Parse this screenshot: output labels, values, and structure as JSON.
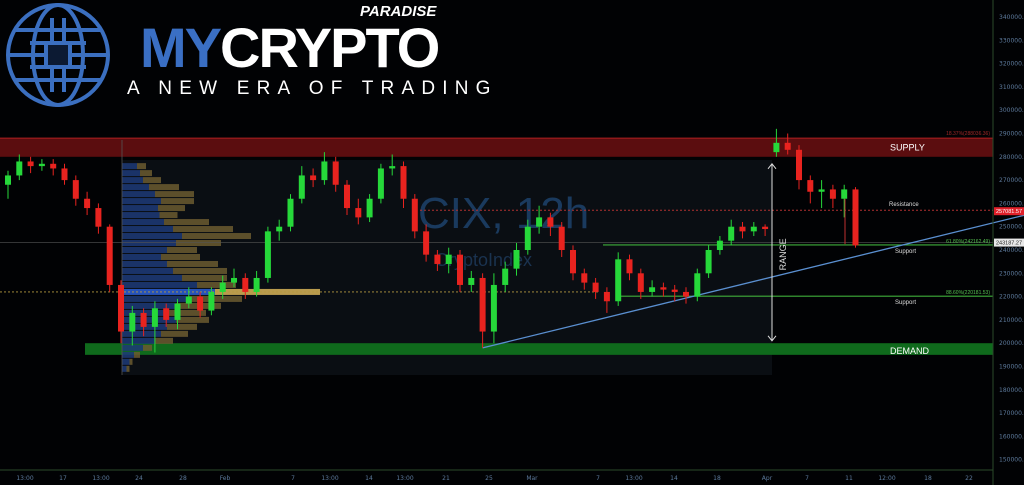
{
  "logo": {
    "brand_part1": "MY",
    "brand_part2": "CRYPTO",
    "brand_top": "PARADISE",
    "tagline": "A NEW ERA OF TRADING"
  },
  "watermark": {
    "symbol": "CIX, 12h",
    "source": "CryptoIndex"
  },
  "annotations": {
    "supply": "SUPPLY",
    "demand": "DEMAND",
    "resistance": "Resistance",
    "support1": "Support",
    "support2": "Support",
    "range": "RANGE",
    "fib_top": "18.37%(288036.36)",
    "fib_618": "61.80%(242162.49)",
    "fib_886": "88.60%(220181.53)"
  },
  "price_tags": {
    "last": "257081.57",
    "crosshair": "243187.27"
  },
  "chart_data": {
    "type": "candlestick",
    "title": "CIX, 12h",
    "yaxis_ticks": [
      "340000.00",
      "330000.00",
      "320000.00",
      "310000.00",
      "300000.00",
      "290000.00",
      "280000.00",
      "270000.00",
      "260000.00",
      "250000.00",
      "240000.00",
      "230000.00",
      "220000.00",
      "210000.00",
      "200000.00",
      "190000.00",
      "180000.00",
      "170000.00",
      "160000.00",
      "150000.00"
    ],
    "ylim": [
      150000,
      340000
    ],
    "xaxis_ticks": [
      "13:00",
      "17",
      "13:00",
      "24",
      "28",
      "Feb",
      "7",
      "13:00",
      "14",
      "13:00",
      "21",
      "25",
      "Mar",
      "7",
      "13:00",
      "14",
      "18",
      "Apr",
      "7",
      "11",
      "12:00",
      "18",
      "22"
    ],
    "colors": {
      "up": "#26d83a",
      "down": "#e8231f",
      "supply": "#6b0f12",
      "demand": "#0f6a1c",
      "trendline": "#5a8fd0",
      "support": "#3fae3a",
      "resistance": "#b03030"
    },
    "candles": [
      [
        268000,
        274000,
        262000,
        272000
      ],
      [
        272000,
        281000,
        270000,
        278000
      ],
      [
        278000,
        280000,
        273000,
        276000
      ],
      [
        276000,
        279000,
        274000,
        277000
      ],
      [
        277000,
        279000,
        272000,
        275000
      ],
      [
        275000,
        277000,
        268000,
        270000
      ],
      [
        270000,
        272000,
        259000,
        262000
      ],
      [
        262000,
        265000,
        255000,
        258000
      ],
      [
        258000,
        260000,
        247000,
        250000
      ],
      [
        250000,
        251000,
        222000,
        225000
      ],
      [
        225000,
        227000,
        200000,
        205000
      ],
      [
        205000,
        216000,
        199000,
        213000
      ],
      [
        213000,
        215000,
        203000,
        207000
      ],
      [
        207000,
        218000,
        196000,
        215000
      ],
      [
        215000,
        217000,
        207000,
        210000
      ],
      [
        210000,
        219000,
        206000,
        217000
      ],
      [
        217000,
        224000,
        215000,
        220000
      ],
      [
        220000,
        222000,
        211000,
        214000
      ],
      [
        214000,
        224000,
        212000,
        222000
      ],
      [
        222000,
        229000,
        219000,
        226000
      ],
      [
        226000,
        232000,
        224000,
        228000
      ],
      [
        228000,
        230000,
        219000,
        222000
      ],
      [
        222000,
        231000,
        220000,
        228000
      ],
      [
        228000,
        250000,
        226000,
        248000
      ],
      [
        248000,
        253000,
        244000,
        250000
      ],
      [
        250000,
        264000,
        248000,
        262000
      ],
      [
        262000,
        276000,
        260000,
        272000
      ],
      [
        272000,
        275000,
        267000,
        270000
      ],
      [
        270000,
        282000,
        268000,
        278000
      ],
      [
        278000,
        280000,
        265000,
        268000
      ],
      [
        268000,
        270000,
        255000,
        258000
      ],
      [
        258000,
        262000,
        251000,
        254000
      ],
      [
        254000,
        264000,
        252000,
        262000
      ],
      [
        262000,
        277000,
        260000,
        275000
      ],
      [
        275000,
        281000,
        272000,
        276000
      ],
      [
        276000,
        278000,
        258000,
        262000
      ],
      [
        262000,
        264000,
        245000,
        248000
      ],
      [
        248000,
        251000,
        235000,
        238000
      ],
      [
        238000,
        240000,
        231000,
        234000
      ],
      [
        234000,
        241000,
        230000,
        238000
      ],
      [
        238000,
        240000,
        222000,
        225000
      ],
      [
        225000,
        231000,
        222000,
        228000
      ],
      [
        228000,
        230000,
        198000,
        205000
      ],
      [
        205000,
        230000,
        200000,
        225000
      ],
      [
        225000,
        235000,
        222000,
        232000
      ],
      [
        232000,
        243000,
        229000,
        240000
      ],
      [
        240000,
        253000,
        238000,
        250000
      ],
      [
        250000,
        259000,
        247000,
        254000
      ],
      [
        254000,
        256000,
        246000,
        250000
      ],
      [
        250000,
        252000,
        237000,
        240000
      ],
      [
        240000,
        242000,
        227000,
        230000
      ],
      [
        230000,
        232000,
        223000,
        226000
      ],
      [
        226000,
        228000,
        219000,
        222000
      ],
      [
        222000,
        224000,
        213000,
        218000
      ],
      [
        218000,
        239000,
        216000,
        236000
      ],
      [
        236000,
        238000,
        227000,
        230000
      ],
      [
        230000,
        232000,
        219000,
        222000
      ],
      [
        222000,
        227000,
        220000,
        224000
      ],
      [
        224000,
        226000,
        220000,
        223000
      ],
      [
        223000,
        225000,
        218000,
        222000
      ],
      [
        222000,
        224000,
        217000,
        220000
      ],
      [
        220000,
        232000,
        218000,
        230000
      ],
      [
        230000,
        242000,
        228000,
        240000
      ],
      [
        240000,
        246000,
        238000,
        244000
      ],
      [
        244000,
        253000,
        242000,
        250000
      ],
      [
        250000,
        252000,
        245000,
        248000
      ],
      [
        248000,
        252000,
        246000,
        250000
      ],
      [
        250000,
        251000,
        246000,
        249000
      ],
      [
        282000,
        292000,
        280000,
        286000
      ],
      [
        286000,
        290000,
        281000,
        283000
      ],
      [
        283000,
        285000,
        266000,
        270000
      ],
      [
        270000,
        272000,
        260000,
        265000
      ],
      [
        265000,
        270000,
        258000,
        266000
      ],
      [
        266000,
        268000,
        258000,
        262000
      ],
      [
        262000,
        268000,
        254000,
        266000
      ],
      [
        266000,
        267000,
        241000,
        242000
      ]
    ],
    "volume_profile": {
      "prices": [
        276000,
        273000,
        270000,
        267000,
        264000,
        261000,
        258000,
        255000,
        252000,
        249000,
        246000,
        243000,
        240000,
        237000,
        234000,
        231000,
        228000,
        225000,
        222000,
        219000,
        216000,
        213000,
        210000,
        207000,
        204000,
        201000,
        198000,
        195000,
        192000,
        189000
      ],
      "up": [
        0.1,
        0.12,
        0.14,
        0.18,
        0.22,
        0.26,
        0.24,
        0.25,
        0.28,
        0.34,
        0.4,
        0.36,
        0.3,
        0.26,
        0.3,
        0.34,
        0.4,
        0.5,
        0.62,
        0.44,
        0.36,
        0.3,
        0.36,
        0.3,
        0.26,
        0.22,
        0.14,
        0.08,
        0.05,
        0.03
      ],
      "down": [
        0.06,
        0.08,
        0.12,
        0.2,
        0.26,
        0.22,
        0.18,
        0.12,
        0.3,
        0.4,
        0.46,
        0.3,
        0.2,
        0.26,
        0.34,
        0.36,
        0.3,
        0.26,
        0.42,
        0.36,
        0.3,
        0.26,
        0.22,
        0.2,
        0.18,
        0.12,
        0.06,
        0.04,
        0.02,
        0.02
      ]
    },
    "levels": {
      "supply_zone": [
        280000,
        288000
      ],
      "demand_zone": [
        195000,
        200000
      ],
      "resistance": 257081.57,
      "fib_618": 242162.49,
      "fib_886": 220181.53,
      "poc": 222000,
      "trendline": {
        "from": {
          "candle": 42,
          "price": 198000
        },
        "to": {
          "candle": 90,
          "price": 255000
        }
      },
      "range": [
        201000,
        277000
      ]
    }
  }
}
